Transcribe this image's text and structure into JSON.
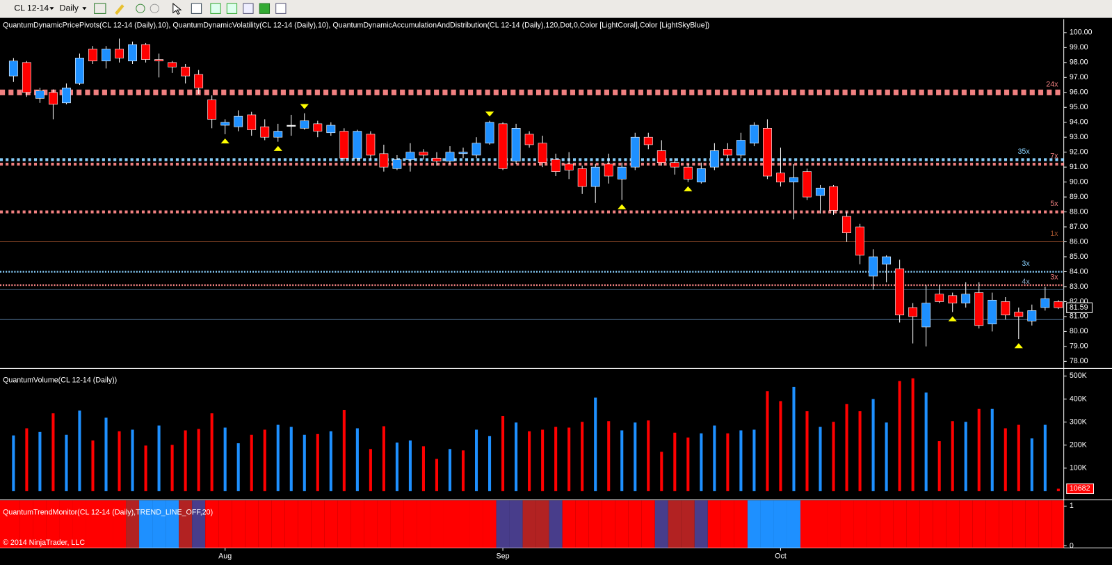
{
  "toolbar": {
    "instrument": "CL 12-14",
    "period": "Daily"
  },
  "footer": {
    "copyright": "© 2014 NinjaTrader, LLC"
  },
  "chart_data": [
    {
      "type": "candlestick",
      "title": "QuantumDynamicPricePivots(CL 12-14 (Daily),10), QuantumDynamicVolatility(CL 12-14 (Daily),10), QuantumDynamicAccumulationAndDistribution(CL 12-14 (Daily),120,Dot,0,Color [LightCoral],Color [LightSkyBlue])",
      "up_color": "#1e90ff",
      "down_color": "#ff0000",
      "categories": [
        null,
        null,
        null,
        null,
        null,
        null,
        null,
        null,
        null,
        null,
        null,
        null,
        null,
        null,
        null,
        null,
        "Aug",
        null,
        null,
        null,
        null,
        null,
        null,
        null,
        null,
        null,
        null,
        null,
        null,
        null,
        null,
        null,
        null,
        null,
        null,
        null,
        null,
        "Sep",
        null,
        null,
        null,
        null,
        null,
        null,
        null,
        null,
        null,
        null,
        null,
        null,
        null,
        null,
        null,
        null,
        null,
        null,
        null,
        null,
        "Oct",
        null,
        null,
        null,
        null,
        null,
        null,
        null,
        null,
        null,
        null,
        null,
        null,
        null,
        null,
        null,
        null,
        null,
        null,
        null,
        null,
        null
      ],
      "open": [
        97.1,
        98.0,
        95.6,
        96.0,
        95.3,
        96.6,
        98.9,
        98.1,
        98.9,
        98.1,
        99.2,
        98.2,
        98.0,
        97.7,
        97.2,
        95.5,
        93.8,
        93.7,
        94.5,
        93.7,
        93.0,
        93.8,
        93.6,
        93.9,
        93.3,
        93.4,
        91.6,
        93.2,
        91.9,
        90.9,
        91.5,
        92.0,
        91.6,
        91.4,
        91.9,
        91.8,
        92.6,
        93.9,
        91.4,
        93.2,
        92.6,
        91.5,
        91.2,
        90.9,
        89.7,
        91.2,
        90.2,
        91.0,
        93.0,
        92.1,
        91.3,
        91.0,
        90.0,
        91.0,
        92.2,
        91.8,
        92.6,
        93.6,
        90.6,
        90.0,
        90.7,
        89.1,
        89.7,
        87.7,
        87.0,
        83.7,
        84.5,
        84.2,
        81.6,
        80.3,
        82.5,
        82.4,
        81.9,
        82.6,
        80.5,
        82.0,
        81.3,
        80.7,
        81.6,
        82.0
      ],
      "high": [
        98.3,
        98.1,
        96.3,
        96.2,
        96.6,
        98.6,
        99.1,
        99.1,
        99.6,
        99.4,
        99.3,
        98.6,
        98.1,
        97.9,
        97.5,
        95.8,
        94.2,
        94.8,
        94.7,
        94.2,
        93.9,
        94.5,
        94.6,
        94.1,
        94.0,
        93.6,
        93.5,
        93.4,
        92.5,
        91.8,
        92.6,
        92.2,
        92.0,
        92.4,
        92.3,
        93.0,
        94.1,
        94.0,
        93.9,
        93.4,
        93.1,
        91.9,
        92.0,
        91.1,
        91.2,
        91.9,
        91.3,
        93.3,
        93.3,
        92.8,
        91.6,
        91.2,
        91.3,
        92.6,
        92.6,
        93.3,
        94.0,
        94.2,
        92.3,
        91.2,
        90.9,
        89.8,
        89.8,
        88.0,
        87.2,
        85.5,
        85.1,
        84.8,
        81.9,
        83.1,
        83.1,
        82.6,
        83.3,
        83.3,
        82.6,
        82.3,
        81.6,
        81.8,
        83.0,
        82.1
      ],
      "low": [
        96.7,
        95.7,
        95.3,
        94.2,
        95.2,
        96.5,
        97.9,
        97.6,
        98.0,
        97.9,
        98.0,
        97.0,
        97.3,
        96.6,
        95.9,
        93.6,
        93.2,
        93.4,
        93.1,
        92.8,
        92.7,
        93.1,
        93.5,
        93.0,
        93.1,
        91.4,
        91.4,
        91.5,
        90.7,
        90.8,
        90.7,
        91.5,
        91.1,
        91.2,
        91.6,
        91.6,
        92.5,
        90.8,
        91.2,
        92.3,
        91.0,
        90.4,
        90.2,
        89.2,
        88.6,
        89.9,
        88.8,
        90.8,
        92.2,
        91.1,
        90.5,
        90.0,
        89.9,
        90.8,
        91.6,
        91.6,
        92.4,
        90.2,
        89.7,
        87.5,
        88.8,
        87.9,
        87.8,
        86.0,
        84.5,
        82.8,
        83.3,
        80.6,
        79.2,
        79.0,
        81.9,
        81.3,
        81.6,
        80.2,
        80.0,
        80.8,
        79.5,
        80.4,
        81.4,
        81.5
      ],
      "close": [
        98.1,
        96.0,
        96.1,
        95.2,
        96.3,
        98.3,
        98.1,
        98.9,
        98.3,
        99.2,
        98.2,
        98.1,
        97.7,
        97.1,
        96.3,
        94.2,
        94.0,
        94.4,
        93.5,
        93.0,
        93.4,
        93.8,
        94.1,
        93.4,
        93.8,
        91.6,
        93.4,
        91.8,
        91.0,
        91.5,
        92.0,
        91.8,
        91.4,
        92.0,
        92.0,
        92.6,
        94.0,
        90.9,
        93.6,
        92.5,
        91.3,
        90.7,
        90.8,
        89.7,
        91.0,
        90.4,
        91.0,
        93.0,
        92.5,
        91.3,
        91.0,
        90.2,
        90.9,
        92.1,
        91.8,
        92.8,
        93.8,
        90.4,
        90.0,
        90.3,
        89.0,
        89.6,
        88.1,
        86.6,
        85.1,
        85.0,
        85.0,
        81.1,
        81.0,
        81.9,
        82.0,
        81.9,
        82.5,
        80.4,
        82.1,
        81.1,
        81.0,
        81.4,
        82.2,
        81.59
      ],
      "swing_highs": [
        22,
        36
      ],
      "swing_lows": [
        16,
        20,
        46,
        51,
        71,
        76
      ],
      "marker_color": "#ffff00",
      "levels": [
        {
          "value": 96.0,
          "color": "#f08080",
          "style": "heavy",
          "label": "24x"
        },
        {
          "value": 91.5,
          "color": "#87cefa",
          "style": "medium",
          "label": "35x"
        },
        {
          "value": 91.2,
          "color": "#f08080",
          "style": "medium",
          "label": "7x"
        },
        {
          "value": 88.0,
          "color": "#f08080",
          "style": "medium",
          "label": "5x"
        },
        {
          "value": 86.0,
          "color": "#a0522d",
          "style": "thin",
          "label": "1x"
        },
        {
          "value": 84.0,
          "color": "#87cefa",
          "style": "dotted",
          "label": "3x"
        },
        {
          "value": 83.1,
          "color": "#f08080",
          "style": "dotted",
          "label": "3x"
        },
        {
          "value": 82.8,
          "color": "#4f6f8f",
          "style": "thin",
          "label": "4x"
        },
        {
          "value": 80.8,
          "color": "#4f6f8f",
          "style": "thin"
        }
      ],
      "ylim": [
        77.53,
        100.9
      ],
      "yticks": [
        {
          "value": 78,
          "label": "78.00"
        },
        {
          "value": 79,
          "label": "79.00"
        },
        {
          "value": 80,
          "label": "80.00"
        },
        {
          "value": 81,
          "label": "81.00"
        },
        {
          "value": 82,
          "label": "82.00"
        },
        {
          "value": 83,
          "label": "83.00"
        },
        {
          "value": 84,
          "label": "84.00"
        },
        {
          "value": 85,
          "label": "85.00"
        },
        {
          "value": 86,
          "label": "86.00"
        },
        {
          "value": 87,
          "label": "87.00"
        },
        {
          "value": 88,
          "label": "88.00"
        },
        {
          "value": 89,
          "label": "89.00"
        },
        {
          "value": 90,
          "label": "90.00"
        },
        {
          "value": 91,
          "label": "91.00"
        },
        {
          "value": 92,
          "label": "92.00"
        },
        {
          "value": 93,
          "label": "93.00"
        },
        {
          "value": 94,
          "label": "94.00"
        },
        {
          "value": 95,
          "label": "95.00"
        },
        {
          "value": 96,
          "label": "96.00"
        },
        {
          "value": 97,
          "label": "97.00"
        },
        {
          "value": 98,
          "label": "98.00"
        },
        {
          "value": 99,
          "label": "99.00"
        },
        {
          "value": 100,
          "label": "100.00"
        }
      ]
    },
    {
      "type": "bar",
      "title": "QuantumVolume(CL 12-14 (Daily))",
      "values": [
        242000,
        273000,
        257000,
        338000,
        245000,
        350000,
        220000,
        319000,
        260000,
        267000,
        198000,
        285000,
        201000,
        264000,
        270000,
        338000,
        276000,
        208000,
        245000,
        267000,
        288000,
        279000,
        245000,
        248000,
        260000,
        353000,
        273000,
        183000,
        282000,
        211000,
        220000,
        195000,
        140000,
        183000,
        177000,
        267000,
        239000,
        326000,
        298000,
        260000,
        267000,
        279000,
        276000,
        301000,
        406000,
        304000,
        264000,
        298000,
        307000,
        171000,
        254000,
        233000,
        251000,
        285000,
        251000,
        264000,
        267000,
        434000,
        391000,
        453000,
        347000,
        279000,
        301000,
        378000,
        347000,
        400000,
        298000,
        478000,
        490000,
        428000,
        217000,
        304000,
        301000,
        357000,
        357000,
        273000,
        288000,
        229000,
        288000,
        10682
      ],
      "colors": [
        "#1e90ff",
        "#ff0000",
        "#1e90ff",
        "#ff0000",
        "#1e90ff",
        "#1e90ff",
        "#ff0000",
        "#1e90ff",
        "#ff0000",
        "#1e90ff",
        "#ff0000",
        "#1e90ff",
        "#ff0000",
        "#ff0000",
        "#ff0000",
        "#ff0000",
        "#1e90ff",
        "#1e90ff",
        "#ff0000",
        "#ff0000",
        "#1e90ff",
        "#1e90ff",
        "#1e90ff",
        "#ff0000",
        "#1e90ff",
        "#ff0000",
        "#1e90ff",
        "#ff0000",
        "#ff0000",
        "#1e90ff",
        "#1e90ff",
        "#ff0000",
        "#ff0000",
        "#1e90ff",
        "#ff0000",
        "#1e90ff",
        "#1e90ff",
        "#ff0000",
        "#1e90ff",
        "#ff0000",
        "#ff0000",
        "#ff0000",
        "#ff0000",
        "#ff0000",
        "#1e90ff",
        "#ff0000",
        "#1e90ff",
        "#1e90ff",
        "#ff0000",
        "#ff0000",
        "#ff0000",
        "#ff0000",
        "#1e90ff",
        "#1e90ff",
        "#ff0000",
        "#1e90ff",
        "#1e90ff",
        "#ff0000",
        "#ff0000",
        "#1e90ff",
        "#ff0000",
        "#1e90ff",
        "#ff0000",
        "#ff0000",
        "#ff0000",
        "#1e90ff",
        "#1e90ff",
        "#ff0000",
        "#ff0000",
        "#1e90ff",
        "#ff0000",
        "#ff0000",
        "#1e90ff",
        "#ff0000",
        "#1e90ff",
        "#ff0000",
        "#ff0000",
        "#1e90ff",
        "#1e90ff",
        "#ff0000"
      ],
      "ylim": [
        -37000,
        533000
      ],
      "yticks": [
        {
          "value": 100000,
          "label": "100K"
        },
        {
          "value": 200000,
          "label": "200K"
        },
        {
          "value": 300000,
          "label": "300K"
        },
        {
          "value": 400000,
          "label": "400K"
        },
        {
          "value": 500000,
          "label": "500K"
        }
      ]
    },
    {
      "type": "strip",
      "title": "QuantumTrendMonitor(CL 12-14 (Daily),TREND_LINE_OFF,20)",
      "colors": [
        "#ff0000",
        "#ff0000",
        "#ff0000",
        "#ff0000",
        "#ff0000",
        "#ff0000",
        "#ff0000",
        "#ff0000",
        "#ff0000",
        "#b22222",
        "#1e90ff",
        "#1e90ff",
        "#1e90ff",
        "#b22222",
        "#483d8b",
        "#ff0000",
        "#ff0000",
        "#ff0000",
        "#ff0000",
        "#ff0000",
        "#ff0000",
        "#ff0000",
        "#ff0000",
        "#ff0000",
        "#ff0000",
        "#ff0000",
        "#ff0000",
        "#ff0000",
        "#ff0000",
        "#ff0000",
        "#ff0000",
        "#ff0000",
        "#ff0000",
        "#ff0000",
        "#ff0000",
        "#ff0000",
        "#ff0000",
        "#483d8b",
        "#483d8b",
        "#b22222",
        "#b22222",
        "#483d8b",
        "#ff0000",
        "#ff0000",
        "#ff0000",
        "#ff0000",
        "#ff0000",
        "#ff0000",
        "#ff0000",
        "#483d8b",
        "#b22222",
        "#b22222",
        "#483d8b",
        "#ff0000",
        "#ff0000",
        "#ff0000",
        "#1e90ff",
        "#1e90ff",
        "#1e90ff",
        "#1e90ff",
        "#ff0000",
        "#ff0000",
        "#ff0000",
        "#ff0000",
        "#ff0000",
        "#ff0000",
        "#ff0000",
        "#ff0000",
        "#ff0000",
        "#ff0000",
        "#ff0000",
        "#ff0000",
        "#ff0000",
        "#ff0000",
        "#ff0000",
        "#ff0000",
        "#ff0000",
        "#ff0000",
        "#ff0000",
        "#ff0000"
      ],
      "ylim": [
        -0.054,
        1.143
      ],
      "yticks": [
        1,
        0
      ]
    }
  ]
}
